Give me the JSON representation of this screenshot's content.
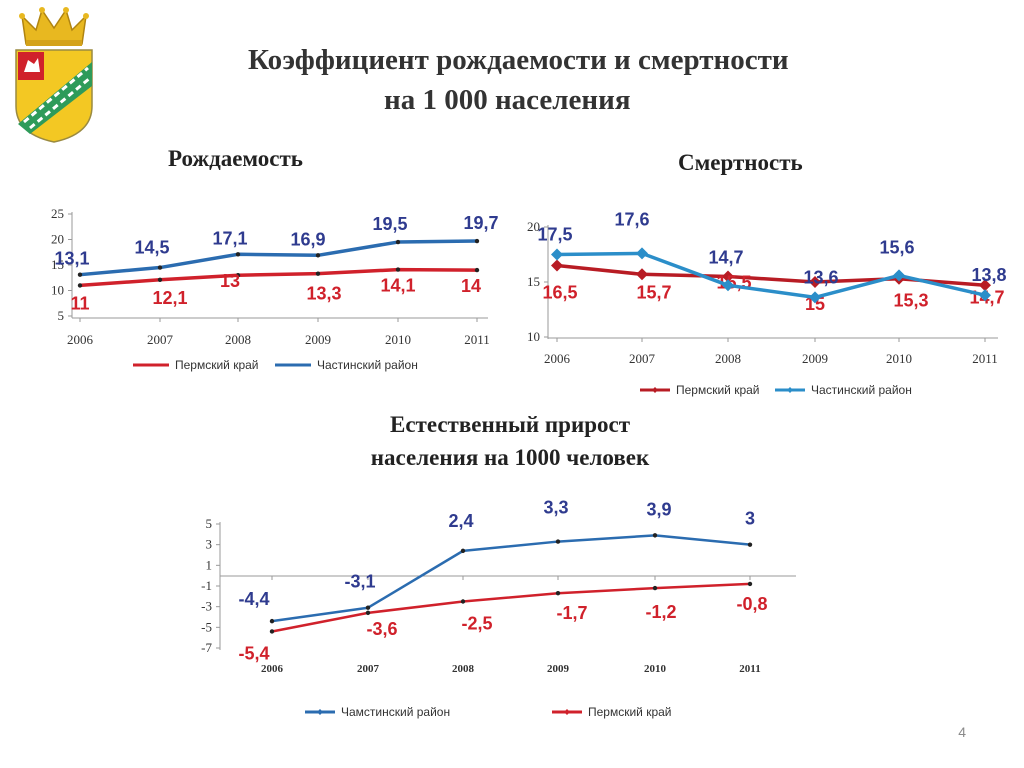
{
  "page": {
    "title_line1": "Коэффициент рождаемости и смертности",
    "title_line2": "на 1 000 населения",
    "page_number": "4"
  },
  "colors": {
    "blue": "#2b6cb0",
    "red": "#d0212b",
    "dark_red": "#b81c24",
    "blue_label": "#2f3b8f",
    "red_label": "#d0212b"
  },
  "chart_data": [
    {
      "id": "birth",
      "type": "line",
      "subtitle": "Рождаемость",
      "x": [
        "2006",
        "2007",
        "2008",
        "2009",
        "2010",
        "2011"
      ],
      "ylim": [
        5,
        25
      ],
      "yticks": [
        "5",
        "10",
        "15",
        "20",
        "25"
      ],
      "grid": false,
      "legend": "bottom",
      "series": [
        {
          "name": "Пермский край",
          "color": "#d0212b",
          "values": [
            11,
            12.1,
            13,
            13.3,
            14.1,
            14
          ],
          "labels": [
            "11",
            "12,1",
            "13",
            "13,3",
            "14,1",
            "14"
          ]
        },
        {
          "name": "Частинский район",
          "color": "#2b6cb0",
          "values": [
            13.1,
            14.5,
            17.1,
            16.9,
            19.5,
            19.7
          ],
          "labels": [
            "13,1",
            "14,5",
            "17,1",
            "16,9",
            "19,5",
            "19,7"
          ]
        }
      ]
    },
    {
      "id": "death",
      "type": "line",
      "subtitle": "Смертность",
      "x": [
        "2006",
        "2007",
        "2008",
        "2009",
        "2010",
        "2011"
      ],
      "ylim": [
        10,
        20
      ],
      "yticks": [
        "10",
        "15",
        "20"
      ],
      "grid": false,
      "legend": "bottom",
      "series": [
        {
          "name": "Пермский край",
          "color": "#b81c24",
          "values": [
            16.5,
            15.7,
            15.5,
            15,
            15.3,
            14.7
          ],
          "labels": [
            "16,5",
            "15,7",
            "15,5",
            "15",
            "15,3",
            "14,7"
          ]
        },
        {
          "name": "Частинский район",
          "color": "#2b8ec9",
          "values": [
            17.5,
            17.6,
            14.7,
            13.6,
            15.6,
            13.8
          ],
          "labels": [
            "17,5",
            "17,6",
            "14,7",
            "13,6",
            "15,6",
            "13,8"
          ]
        }
      ]
    },
    {
      "id": "growth",
      "type": "line",
      "subtitle_line1": "Естественный прирост",
      "subtitle_line2": "населения на 1000 человек",
      "x": [
        "2006",
        "2007",
        "2008",
        "2009",
        "2010",
        "2011"
      ],
      "ylim": [
        -7,
        5
      ],
      "yticks": [
        "-7",
        "-5",
        "-3",
        "-1",
        "1",
        "3",
        "5"
      ],
      "grid": false,
      "legend": "bottom",
      "series": [
        {
          "name": "Чамстинский район",
          "color": "#2b6cb0",
          "values": [
            -4.4,
            -3.1,
            2.4,
            3.3,
            3.9,
            3
          ],
          "labels": [
            "-4,4",
            "-3,1",
            "2,4",
            "3,3",
            "3,9",
            "3"
          ]
        },
        {
          "name": "Пермский край",
          "color": "#d0212b",
          "values": [
            -5.4,
            -3.6,
            -2.5,
            -1.7,
            -1.2,
            -0.8
          ],
          "labels": [
            "-5,4",
            "-3,6",
            "-2,5",
            "-1,7",
            "-1,2",
            "-0,8"
          ]
        }
      ]
    }
  ]
}
